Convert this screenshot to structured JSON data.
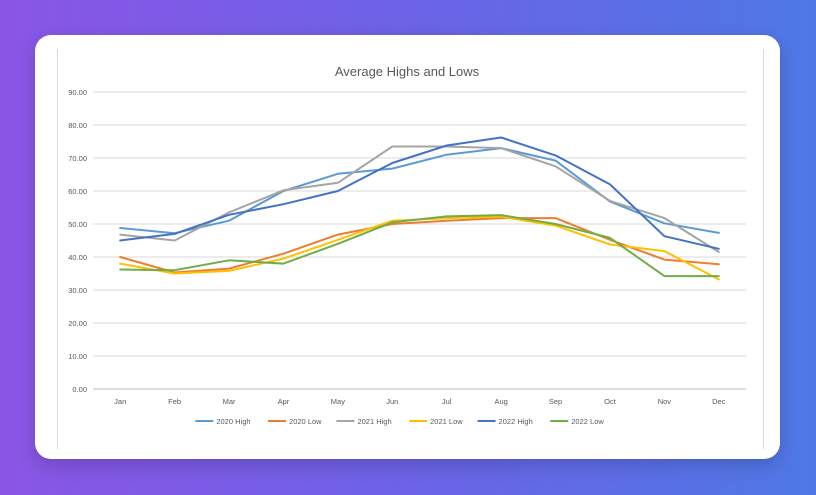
{
  "chart_data": {
    "type": "line",
    "title": "Average Highs and Lows",
    "xlabel": "",
    "ylabel": "",
    "categories": [
      "Jan",
      "Feb",
      "Mar",
      "Apr",
      "May",
      "Jun",
      "Jul",
      "Aug",
      "Sep",
      "Oct",
      "Nov",
      "Dec"
    ],
    "ylim": [
      0,
      90
    ],
    "yticks": [
      "0.00",
      "10.00",
      "20.00",
      "30.00",
      "40.00",
      "50.00",
      "60.00",
      "70.00",
      "80.00",
      "90.00"
    ],
    "grid": true,
    "legend_position": "bottom",
    "series": [
      {
        "name": "2020 High",
        "color": "#5b9bd5",
        "values": [
          48.8,
          47.2,
          51.0,
          60.0,
          65.2,
          66.8,
          71.0,
          73.0,
          69.2,
          56.8,
          50.2,
          47.3
        ]
      },
      {
        "name": "2020 Low",
        "color": "#ed7d31",
        "values": [
          40.0,
          35.3,
          36.5,
          41.0,
          46.8,
          50.0,
          51.0,
          51.8,
          51.8,
          45.2,
          39.2,
          37.8
        ]
      },
      {
        "name": "2021 High",
        "color": "#a5a5a5",
        "values": [
          46.8,
          45.0,
          53.5,
          60.2,
          62.5,
          73.5,
          73.5,
          73.0,
          67.5,
          57.0,
          51.8,
          41.5
        ]
      },
      {
        "name": "2021 Low",
        "color": "#ffc000",
        "values": [
          38.0,
          35.0,
          35.8,
          39.5,
          45.2,
          51.0,
          51.8,
          52.2,
          49.5,
          43.8,
          41.8,
          33.2
        ]
      },
      {
        "name": "2022 High",
        "color": "#4472c4",
        "values": [
          45.0,
          47.0,
          52.8,
          56.0,
          60.0,
          68.5,
          73.8,
          76.2,
          70.8,
          62.0,
          46.3,
          42.5
        ]
      },
      {
        "name": "2022 Low",
        "color": "#70ad47",
        "values": [
          36.2,
          36.0,
          39.0,
          38.0,
          44.0,
          50.5,
          52.3,
          52.7,
          50.0,
          45.8,
          34.2,
          34.2
        ]
      }
    ]
  }
}
